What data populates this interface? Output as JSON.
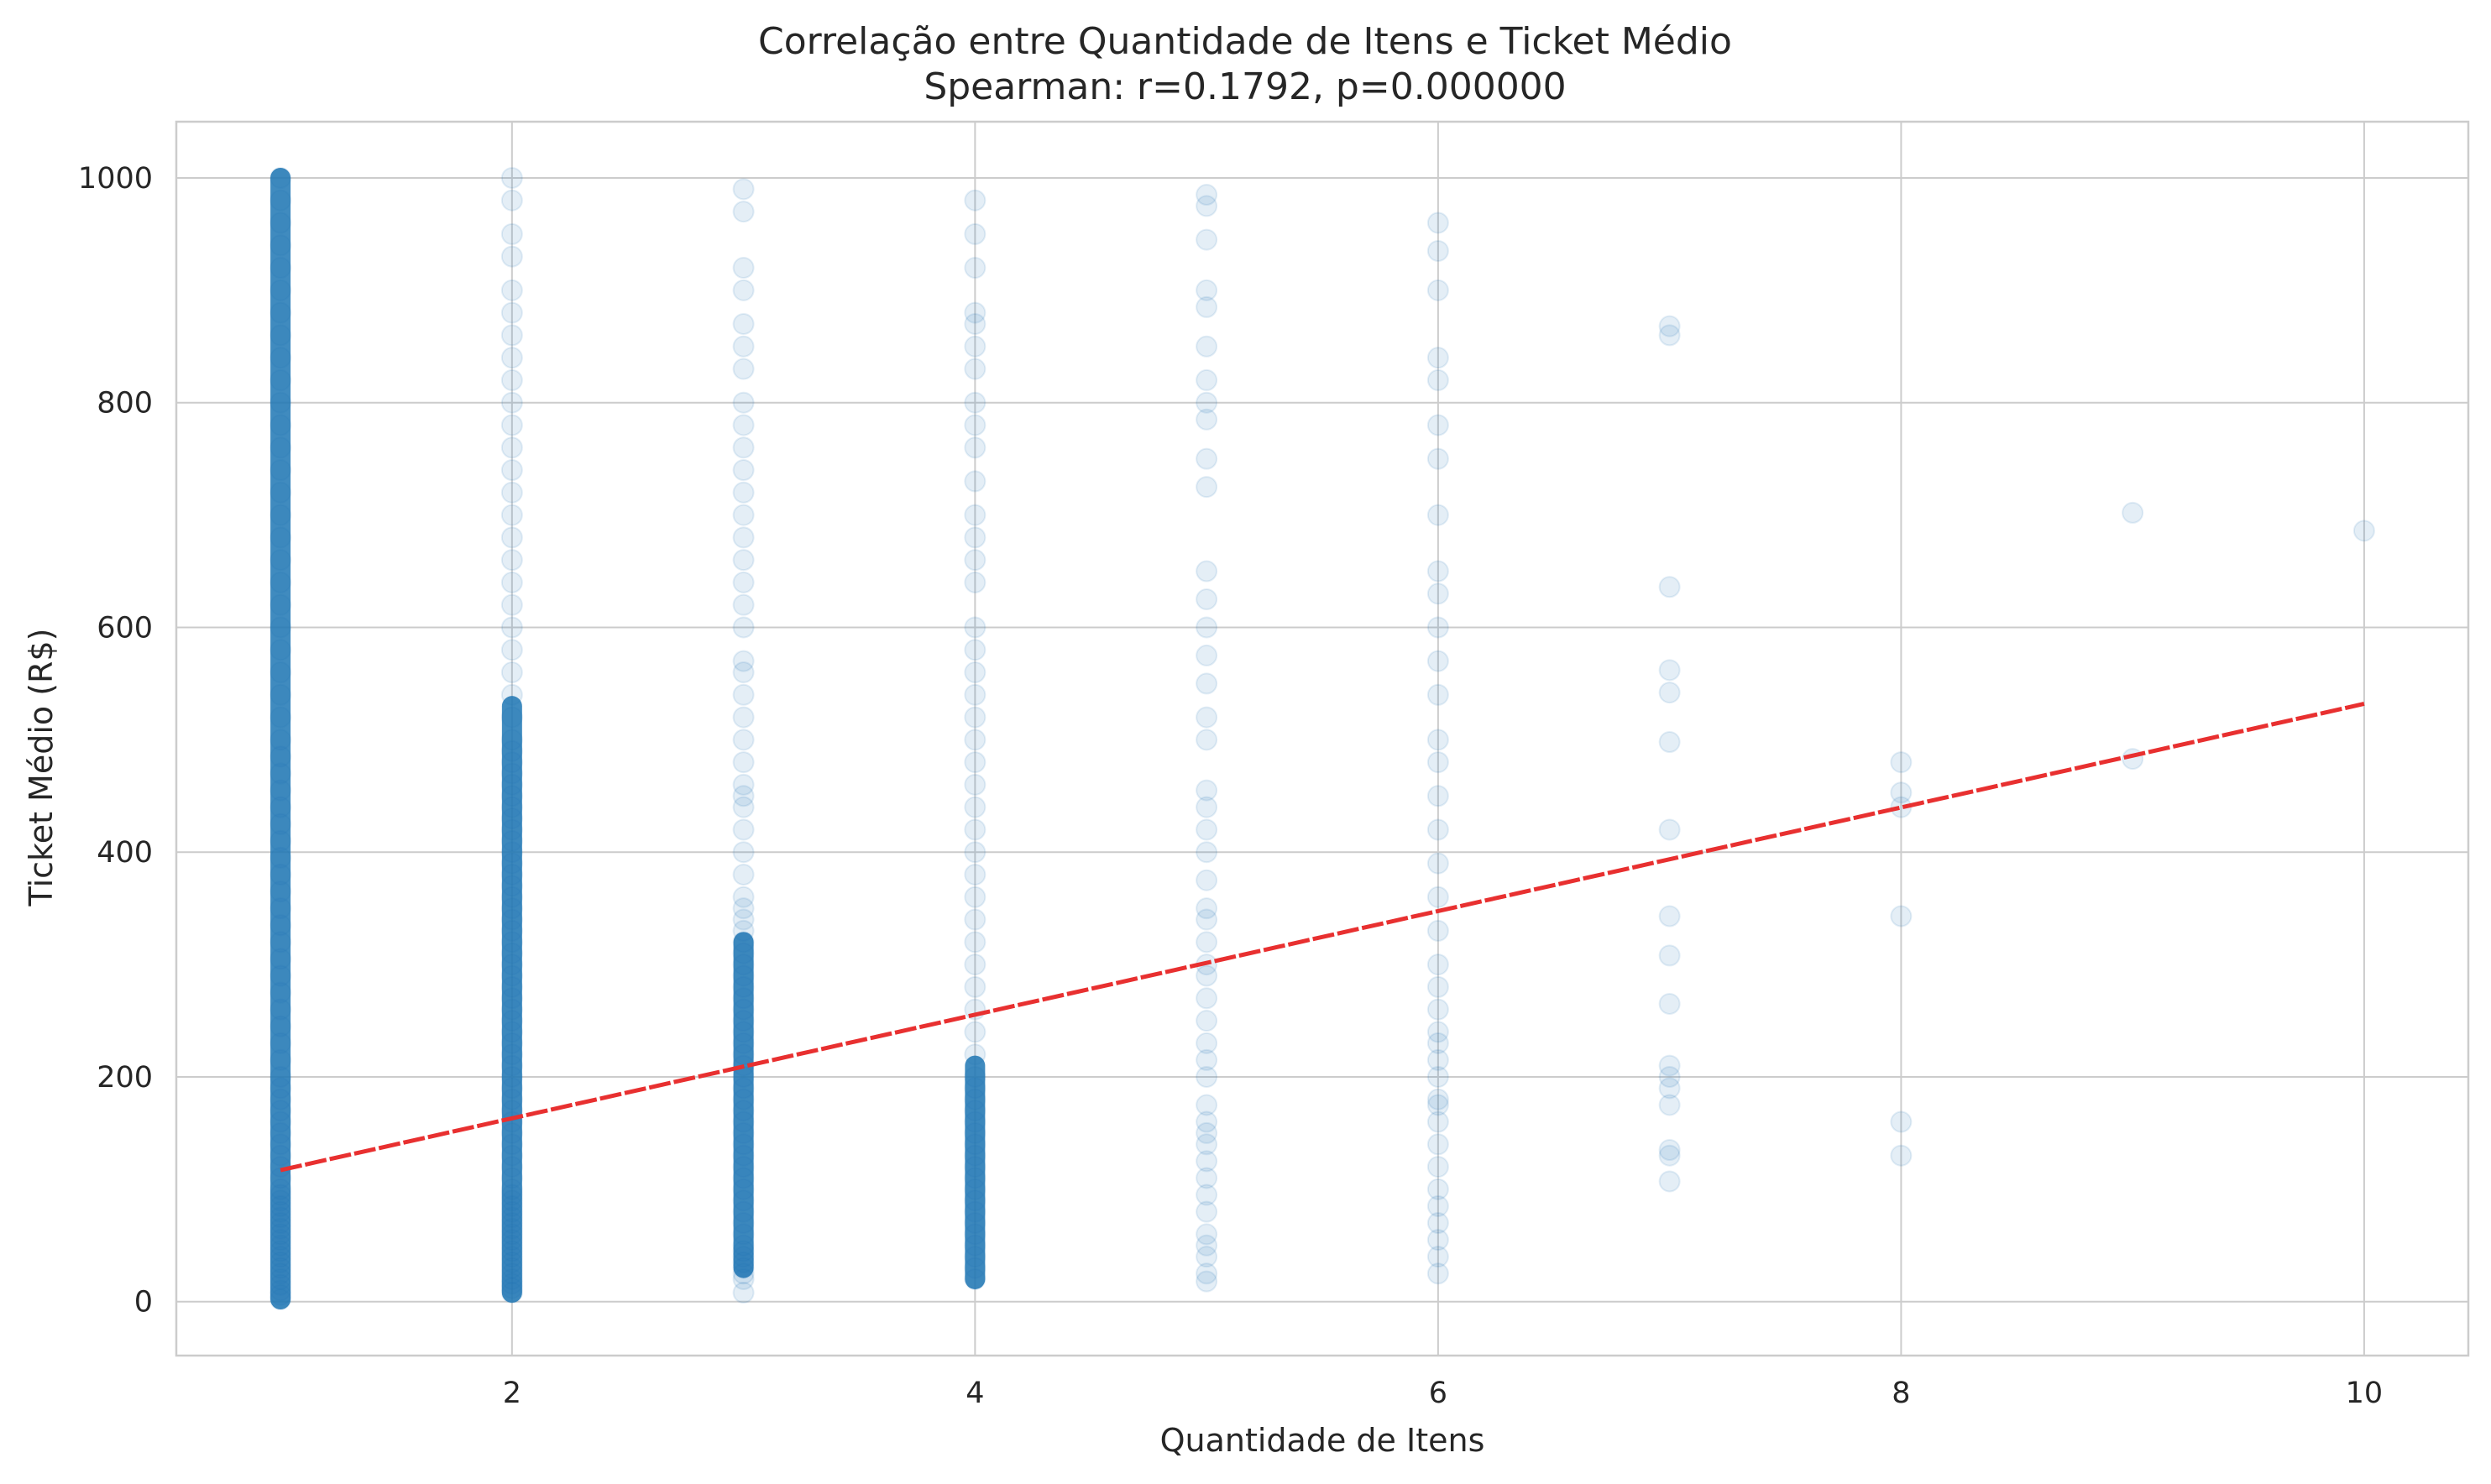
{
  "chart_data": {
    "type": "scatter",
    "title": "Correlação entre Quantidade de Itens e Ticket Médio",
    "subtitle": "Spearman: r=0.1792, p=0.000000",
    "xlabel": "Quantidade de Itens",
    "ylabel": "Ticket Médio (R$)",
    "xlim": [
      0.55,
      10.45
    ],
    "ylim": [
      -48,
      1050
    ],
    "xticks": [
      2,
      4,
      6,
      8,
      10
    ],
    "yticks": [
      0,
      200,
      400,
      600,
      800,
      1000
    ],
    "xtick_labels": [
      "2",
      "4",
      "6",
      "8",
      "10"
    ],
    "ytick_labels": [
      "0",
      "200",
      "400",
      "600",
      "800",
      "1000"
    ],
    "grid": true,
    "colors": {
      "points": "#1f77b4",
      "trend": "#e83030"
    },
    "trend_line": {
      "x": [
        1,
        10
      ],
      "y": [
        117,
        532
      ],
      "style": "dashed"
    },
    "points": [
      {
        "x": 1,
        "y": [
          2,
          6,
          10,
          15,
          20,
          25,
          30,
          35,
          40,
          45,
          50,
          55,
          60,
          65,
          70,
          75,
          80,
          85,
          90,
          95,
          100,
          110,
          120,
          130,
          140,
          150,
          160,
          170,
          180,
          190,
          200,
          215,
          230,
          245,
          260,
          275,
          290,
          305,
          320,
          335,
          350,
          365,
          380,
          395,
          410,
          425,
          440,
          455,
          470,
          485,
          500,
          520,
          540,
          560,
          580,
          600,
          620,
          640,
          660,
          680,
          700,
          720,
          740,
          760,
          780,
          800,
          820,
          840,
          860,
          880,
          900,
          920,
          940,
          960,
          980,
          1000
        ]
      },
      {
        "x": 2,
        "y": [
          8,
          12,
          16,
          20,
          25,
          30,
          35,
          40,
          45,
          50,
          55,
          60,
          65,
          70,
          75,
          80,
          85,
          90,
          95,
          100,
          110,
          120,
          130,
          140,
          150,
          160,
          170,
          180,
          190,
          200,
          210,
          220,
          230,
          240,
          250,
          260,
          270,
          280,
          290,
          300,
          310,
          320,
          330,
          340,
          350,
          360,
          370,
          380,
          390,
          400,
          410,
          420,
          430,
          440,
          450,
          460,
          470,
          480,
          490,
          500,
          520,
          540,
          560,
          580,
          600,
          620,
          640,
          660,
          680,
          700,
          720,
          740,
          760,
          780,
          800,
          820,
          840,
          860,
          880,
          900,
          930,
          950,
          980,
          1000
        ]
      },
      {
        "x": 3,
        "y": [
          8,
          20,
          25,
          30,
          35,
          40,
          45,
          50,
          60,
          70,
          80,
          90,
          100,
          110,
          120,
          130,
          140,
          150,
          160,
          170,
          180,
          190,
          200,
          210,
          220,
          230,
          240,
          250,
          260,
          270,
          280,
          290,
          300,
          310,
          320,
          330,
          340,
          350,
          360,
          380,
          400,
          420,
          440,
          450,
          460,
          480,
          500,
          520,
          540,
          560,
          570,
          600,
          620,
          640,
          660,
          680,
          700,
          720,
          740,
          760,
          780,
          800,
          830,
          850,
          870,
          900,
          920,
          970,
          990
        ]
      },
      {
        "x": 4,
        "y": [
          20,
          30,
          40,
          50,
          60,
          70,
          80,
          90,
          100,
          110,
          120,
          130,
          140,
          150,
          160,
          170,
          180,
          190,
          200,
          220,
          240,
          260,
          280,
          300,
          320,
          340,
          360,
          380,
          400,
          420,
          440,
          460,
          480,
          500,
          520,
          540,
          560,
          580,
          600,
          640,
          660,
          680,
          700,
          730,
          760,
          780,
          800,
          830,
          850,
          870,
          880,
          920,
          950,
          980
        ]
      },
      {
        "x": 5,
        "y": [
          18,
          25,
          40,
          50,
          60,
          80,
          95,
          110,
          125,
          140,
          150,
          160,
          175,
          200,
          215,
          230,
          250,
          270,
          290,
          300,
          320,
          340,
          350,
          375,
          400,
          420,
          440,
          455,
          500,
          520,
          550,
          575,
          600,
          625,
          650,
          725,
          750,
          785,
          800,
          820,
          850,
          885,
          900,
          945,
          975,
          985
        ]
      },
      {
        "x": 6,
        "y": [
          25,
          40,
          55,
          70,
          85,
          100,
          120,
          140,
          160,
          175,
          180,
          200,
          215,
          230,
          240,
          260,
          280,
          300,
          330,
          360,
          390,
          420,
          450,
          480,
          500,
          540,
          570,
          600,
          630,
          650,
          700,
          750,
          780,
          820,
          840,
          900,
          935,
          960
        ]
      },
      {
        "x": 7,
        "y": [
          107,
          130,
          135,
          175,
          190,
          200,
          210,
          265,
          308,
          343,
          420,
          498,
          542,
          562,
          636,
          860,
          868
        ]
      },
      {
        "x": 8,
        "y": [
          130,
          160,
          343,
          440,
          453,
          480
        ]
      },
      {
        "x": 9,
        "y": [
          483,
          702
        ]
      },
      {
        "x": 10,
        "y": [
          686
        ]
      }
    ],
    "dense_ranges": [
      {
        "x": 1,
        "y_min": 2,
        "y_max": 1000
      },
      {
        "x": 2,
        "y_min": 8,
        "y_max": 530
      },
      {
        "x": 3,
        "y_min": 30,
        "y_max": 320
      },
      {
        "x": 4,
        "y_min": 20,
        "y_max": 210
      }
    ]
  }
}
